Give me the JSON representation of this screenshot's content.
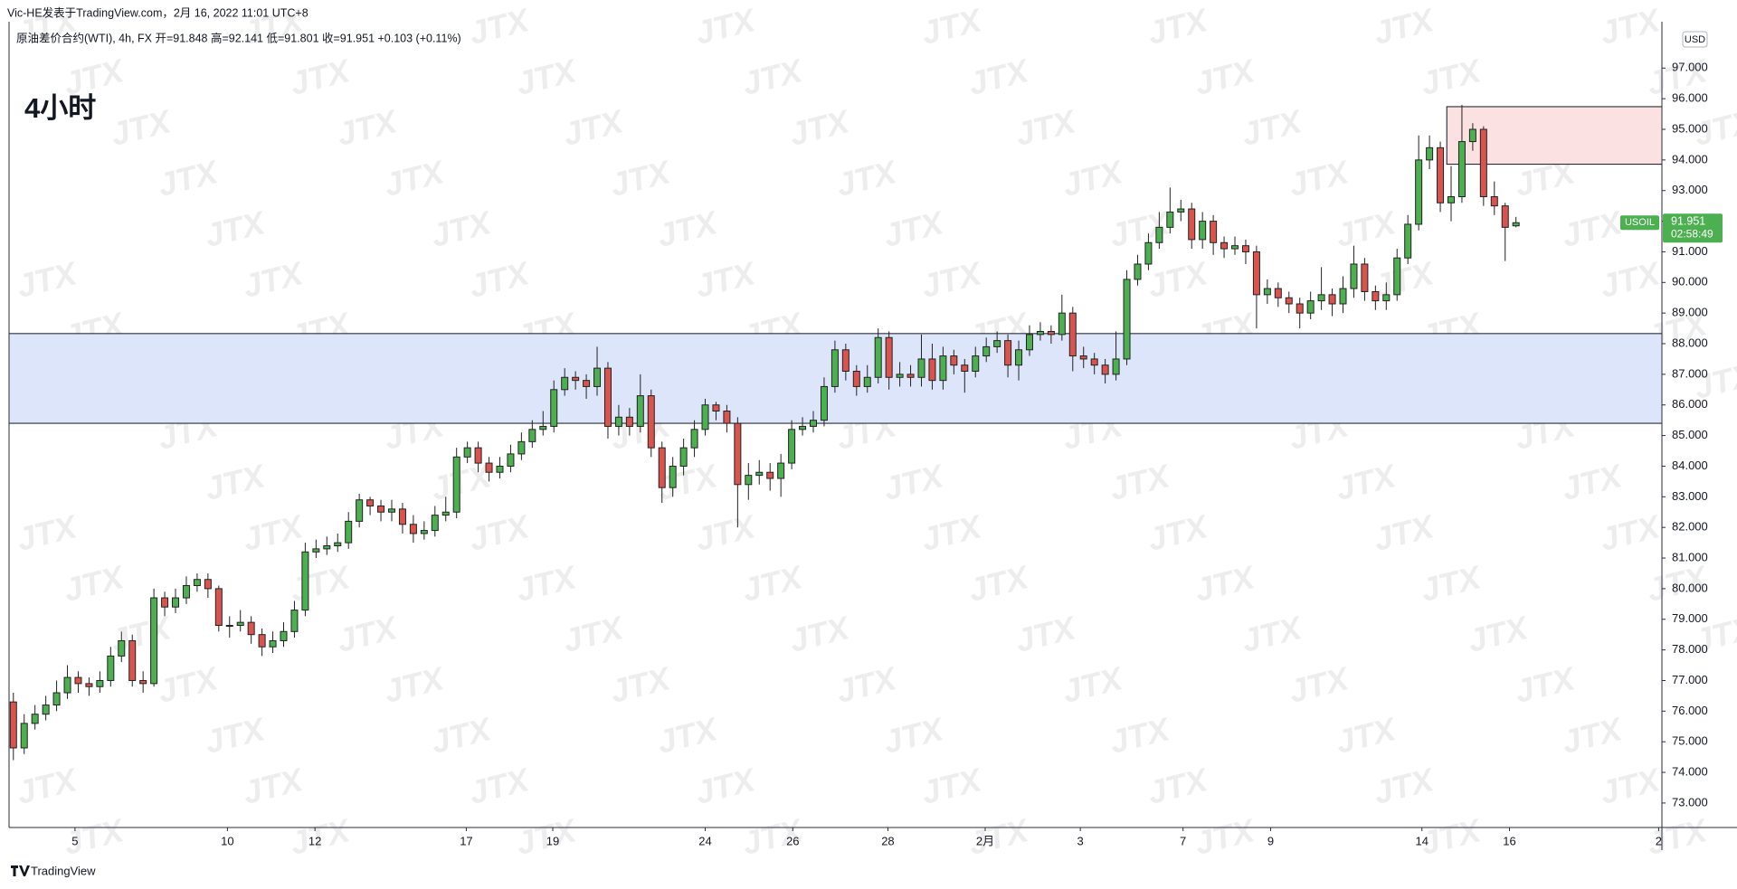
{
  "chart_data": {
    "type": "candlestick",
    "publisher": "Vic-HE发表于TradingView.com，2月 16, 2022 11:01 UTC+8",
    "legend": "原油差价合约(WTI), 4h, FX  开=91.848  高=92.141  低=91.801  收=91.951  +0.103 (+0.11%)",
    "title": "4小时",
    "currency": "USD",
    "countdown": "02:58:49",
    "brand": "TradingView",
    "watermark": "JTX",
    "up_color": "#4caf50",
    "down_color": "#d9534f",
    "xlim": [
      -0.4,
      152.5
    ],
    "xticks": [
      {
        "value": 5.7,
        "label": "5"
      },
      {
        "value": 19.8,
        "label": "10"
      },
      {
        "value": 27.9,
        "label": "12"
      },
      {
        "value": 41.9,
        "label": "17"
      },
      {
        "value": 49.9,
        "label": "19"
      },
      {
        "value": 64.0,
        "label": "24"
      },
      {
        "value": 72.1,
        "label": "26"
      },
      {
        "value": 80.9,
        "label": "28"
      },
      {
        "value": 89.9,
        "label": "2月"
      },
      {
        "value": 98.7,
        "label": "3"
      },
      {
        "value": 108.2,
        "label": "7"
      },
      {
        "value": 116.3,
        "label": "9"
      },
      {
        "value": 130.3,
        "label": "14"
      },
      {
        "value": 138.4,
        "label": "16"
      },
      {
        "value": 152.2,
        "label": "2"
      }
    ],
    "ylim": [
      72.2,
      98.5
    ],
    "yticks": [
      {
        "value": 73,
        "label": "73.000"
      },
      {
        "value": 74,
        "label": "74.000"
      },
      {
        "value": 75,
        "label": "75.000"
      },
      {
        "value": 76,
        "label": "76.000"
      },
      {
        "value": 77,
        "label": "77.000"
      },
      {
        "value": 78,
        "label": "78.000"
      },
      {
        "value": 79,
        "label": "79.000"
      },
      {
        "value": 80,
        "label": "80.000"
      },
      {
        "value": 81,
        "label": "81.000"
      },
      {
        "value": 82,
        "label": "82.000"
      },
      {
        "value": 83,
        "label": "83.000"
      },
      {
        "value": 84,
        "label": "84.000"
      },
      {
        "value": 85,
        "label": "85.000"
      },
      {
        "value": 86,
        "label": "86.000"
      },
      {
        "value": 87,
        "label": "87.000"
      },
      {
        "value": 88,
        "label": "88.000"
      },
      {
        "value": 89,
        "label": "89.000"
      },
      {
        "value": 90,
        "label": "90.000"
      },
      {
        "value": 91,
        "label": "91.000"
      },
      {
        "value": 92,
        "label": "92.000"
      },
      {
        "value": 93,
        "label": "93.000"
      },
      {
        "value": 94,
        "label": "94.000"
      },
      {
        "value": 95,
        "label": "95.000"
      },
      {
        "value": 96,
        "label": "96.000"
      },
      {
        "value": 97,
        "label": "97.000"
      }
    ],
    "zones": [
      {
        "low": 85.4,
        "high": 88.33,
        "fill": "#dde5fb"
      },
      {
        "low": 93.86,
        "high": 95.74,
        "start": 132.6,
        "fill": "#fbe1e1"
      }
    ],
    "series": [
      {
        "name": "USOIL",
        "open": [
          76.3,
          74.8,
          75.6,
          75.9,
          76.2,
          76.6,
          77.1,
          76.9,
          76.8,
          77.0,
          77.8,
          78.3,
          77.0,
          76.9,
          79.7,
          79.4,
          79.7,
          80.1,
          80.3,
          80.0,
          78.8,
          78.8,
          78.9,
          78.5,
          78.1,
          78.3,
          78.6,
          79.3,
          81.2,
          81.3,
          81.4,
          81.5,
          82.2,
          82.9,
          82.7,
          82.5,
          82.6,
          82.1,
          81.8,
          81.9,
          82.4,
          82.5,
          84.3,
          84.6,
          84.1,
          83.8,
          84.0,
          84.4,
          84.8,
          85.2,
          85.3,
          86.5,
          86.9,
          86.8,
          86.6,
          87.2,
          85.3,
          85.6,
          85.3,
          86.3,
          84.6,
          83.3,
          84.0,
          84.6,
          85.2,
          86.0,
          85.8,
          85.4,
          83.4,
          83.7,
          83.8,
          83.6,
          84.1,
          85.2,
          85.3,
          85.5,
          86.6,
          87.8,
          87.1,
          86.6,
          86.9,
          88.2,
          86.9,
          87.0,
          86.9,
          87.5,
          86.8,
          87.6,
          87.3,
          87.1,
          87.6,
          87.9,
          88.1,
          87.3,
          87.8,
          88.3,
          88.4,
          88.3,
          89.0,
          87.6,
          87.5,
          87.3,
          87.0,
          87.5,
          90.1,
          90.6,
          91.3,
          91.8,
          92.3,
          92.4,
          91.4,
          92.0,
          91.3,
          91.1,
          91.2,
          91.0,
          89.6,
          89.8,
          89.5,
          89.3,
          89.0,
          89.4,
          89.6,
          89.3,
          89.8,
          90.6,
          89.7,
          89.4,
          89.6,
          90.8,
          91.9,
          94.0,
          94.4,
          92.6,
          92.8,
          94.6,
          95.0,
          92.8,
          92.5,
          91.848
        ],
        "high": [
          76.6,
          75.9,
          76.2,
          76.5,
          77.0,
          77.5,
          77.3,
          77.1,
          77.3,
          78.1,
          78.6,
          78.5,
          77.3,
          80.0,
          79.9,
          80.0,
          80.4,
          80.5,
          80.5,
          80.1,
          79.1,
          79.3,
          79.1,
          78.7,
          78.6,
          78.9,
          79.6,
          81.5,
          81.6,
          81.7,
          81.8,
          82.5,
          83.1,
          83.0,
          82.9,
          82.9,
          82.8,
          82.4,
          82.2,
          82.7,
          83.0,
          84.6,
          84.8,
          84.8,
          84.3,
          84.3,
          84.7,
          85.1,
          85.5,
          85.8,
          86.8,
          87.2,
          87.1,
          87.0,
          87.9,
          87.4,
          86.0,
          85.9,
          87.0,
          86.5,
          84.8,
          84.3,
          84.9,
          85.5,
          86.2,
          86.1,
          86.0,
          85.6,
          84.1,
          84.2,
          84.1,
          84.4,
          85.5,
          85.6,
          85.8,
          86.9,
          88.1,
          88.0,
          87.3,
          87.3,
          88.5,
          88.4,
          87.4,
          87.3,
          88.3,
          88.0,
          87.9,
          87.8,
          87.5,
          87.9,
          88.2,
          88.4,
          88.3,
          88.1,
          88.6,
          88.7,
          88.6,
          89.6,
          89.2,
          87.9,
          87.7,
          87.5,
          88.4,
          90.4,
          90.9,
          91.6,
          92.3,
          93.1,
          92.7,
          92.6,
          92.3,
          92.2,
          91.5,
          91.5,
          91.4,
          91.2,
          90.1,
          90.0,
          89.7,
          89.5,
          89.7,
          90.5,
          89.8,
          90.2,
          91.2,
          90.8,
          89.9,
          90.0,
          91.1,
          92.2,
          94.8,
          94.8,
          94.6,
          93.8,
          95.8,
          95.2,
          95.1,
          93.3,
          92.6,
          92.141
        ],
        "low": [
          74.4,
          74.6,
          75.4,
          75.7,
          76.0,
          76.4,
          76.6,
          76.5,
          76.6,
          76.8,
          77.6,
          76.8,
          76.6,
          76.8,
          79.1,
          79.2,
          79.5,
          79.9,
          79.7,
          78.6,
          78.4,
          78.6,
          78.2,
          77.8,
          77.9,
          78.1,
          78.4,
          79.1,
          81.0,
          81.1,
          81.2,
          81.3,
          82.0,
          82.4,
          82.2,
          82.2,
          81.8,
          81.5,
          81.6,
          81.7,
          82.2,
          82.3,
          84.1,
          83.8,
          83.5,
          83.6,
          83.8,
          84.2,
          84.6,
          85.0,
          85.1,
          86.3,
          86.5,
          86.2,
          86.3,
          84.9,
          85.0,
          85.0,
          85.1,
          84.3,
          82.8,
          83.0,
          83.7,
          84.3,
          85.0,
          85.5,
          85.1,
          82.0,
          82.9,
          83.4,
          83.2,
          83.0,
          83.9,
          85.0,
          85.1,
          85.3,
          86.4,
          86.8,
          86.3,
          86.4,
          86.7,
          86.5,
          86.6,
          86.6,
          86.6,
          86.5,
          86.5,
          87.0,
          86.4,
          86.9,
          87.4,
          87.7,
          86.9,
          86.8,
          87.6,
          88.1,
          88.0,
          88.1,
          87.1,
          87.2,
          87.0,
          86.7,
          86.8,
          87.3,
          89.9,
          90.4,
          91.1,
          91.6,
          92.0,
          91.1,
          91.1,
          90.9,
          90.8,
          90.9,
          90.6,
          88.5,
          89.3,
          89.2,
          89.0,
          88.5,
          88.8,
          89.1,
          88.9,
          89.0,
          89.5,
          89.4,
          89.1,
          89.1,
          89.4,
          90.6,
          91.7,
          93.7,
          92.3,
          92.0,
          92.6,
          94.3,
          92.5,
          92.2,
          90.7,
          91.801
        ],
        "close": [
          74.8,
          75.6,
          75.9,
          76.2,
          76.6,
          77.1,
          76.9,
          76.8,
          77.0,
          77.8,
          78.3,
          77.0,
          76.9,
          79.7,
          79.4,
          79.7,
          80.1,
          80.3,
          80.0,
          78.8,
          78.8,
          78.9,
          78.5,
          78.1,
          78.3,
          78.6,
          79.3,
          81.2,
          81.3,
          81.4,
          81.5,
          82.2,
          82.9,
          82.7,
          82.5,
          82.6,
          82.1,
          81.8,
          81.9,
          82.4,
          82.5,
          84.3,
          84.6,
          84.1,
          83.8,
          84.0,
          84.4,
          84.8,
          85.2,
          85.3,
          86.5,
          86.9,
          86.8,
          86.6,
          87.2,
          85.3,
          85.6,
          85.3,
          86.3,
          84.6,
          83.3,
          84.0,
          84.6,
          85.2,
          86.0,
          85.8,
          85.4,
          83.4,
          83.7,
          83.8,
          83.6,
          84.1,
          85.2,
          85.3,
          85.5,
          86.6,
          87.8,
          87.1,
          86.6,
          86.9,
          88.2,
          86.9,
          87.0,
          86.9,
          87.5,
          86.8,
          87.6,
          87.3,
          87.1,
          87.6,
          87.9,
          88.1,
          87.3,
          87.8,
          88.3,
          88.4,
          88.3,
          89.0,
          87.6,
          87.5,
          87.3,
          87.0,
          87.5,
          90.1,
          90.6,
          91.3,
          91.8,
          92.3,
          92.4,
          91.4,
          92.0,
          91.3,
          91.1,
          91.2,
          91.0,
          89.6,
          89.8,
          89.5,
          89.3,
          89.0,
          89.4,
          89.6,
          89.3,
          89.8,
          90.6,
          89.7,
          89.4,
          89.6,
          90.8,
          91.9,
          94.0,
          94.4,
          92.6,
          92.8,
          94.6,
          95.0,
          92.8,
          92.5,
          91.8,
          91.951
        ]
      }
    ]
  }
}
